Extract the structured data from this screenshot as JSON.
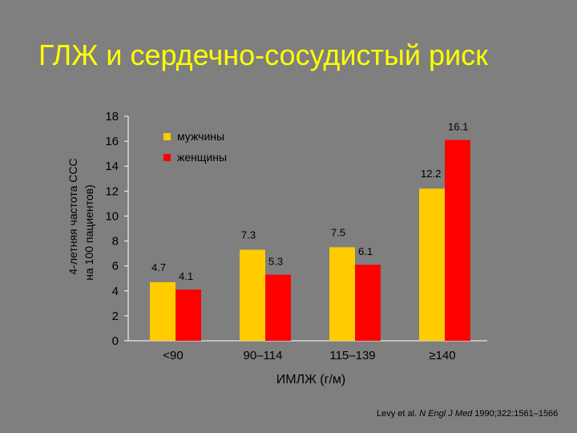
{
  "title": "ГЛЖ и сердечно-сосудистый риск",
  "citation": {
    "authors": "Levy et al.",
    "journal": "N Engl J Med",
    "rest": "1990;322:1561–1566"
  },
  "colors": {
    "background": "#7f7f7f",
    "title": "#ffff00",
    "men": "#ffcc00",
    "women": "#ff0000",
    "axis": "#ffffff",
    "text": "#000000"
  },
  "chart_data": {
    "type": "bar",
    "categories": [
      "<90",
      "90–114",
      "115–139",
      "≥140"
    ],
    "series": [
      {
        "name": "мужчины",
        "values": [
          4.7,
          7.3,
          7.5,
          12.2
        ]
      },
      {
        "name": "женщины",
        "values": [
          4.1,
          5.3,
          6.1,
          16.1
        ]
      }
    ],
    "data_labels": [
      [
        "4.7",
        "7.3",
        "7.5",
        "12.2"
      ],
      [
        "4.1",
        "5.3",
        "6.1",
        "16.1"
      ]
    ],
    "ylabel_line1": "4-летняя частота ССС",
    "ylabel_line2": "на 100 пациентов)",
    "xlabel": "ИМЛЖ (г/м)",
    "ylim": [
      0,
      18
    ],
    "yticks": [
      "0",
      "2",
      "4",
      "6",
      "8",
      "10",
      "12",
      "14",
      "16",
      "18"
    ],
    "legend_position": "top-left",
    "grid": false
  }
}
